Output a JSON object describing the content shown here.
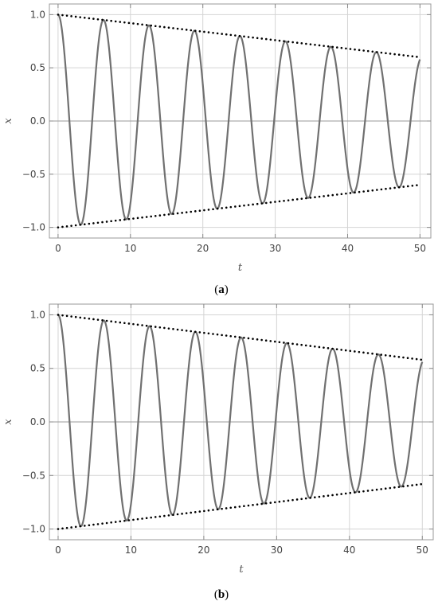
{
  "chart_data": [
    {
      "type": "line",
      "caption_letter": "a",
      "xlabel": "t",
      "ylabel": "x",
      "xlim": [
        -1.2,
        51.5
      ],
      "ylim": [
        -1.1,
        1.1
      ],
      "xticks": [
        "0",
        "10",
        "20",
        "30",
        "40",
        "50"
      ],
      "yticks": [
        "-1.0",
        "-0.5",
        "0.0",
        "0.5",
        "1.0"
      ],
      "grid": true,
      "series": [
        {
          "style": "solid",
          "color": "#707070",
          "function": "cos",
          "x": [
            0,
            50
          ],
          "amplitude": [
            1.0,
            0.6
          ],
          "omega": 1.0
        },
        {
          "style": "dotted",
          "color": "#000000",
          "x": [
            0,
            50
          ],
          "y": [
            1.0,
            0.6
          ]
        },
        {
          "style": "dotted",
          "color": "#000000",
          "x": [
            0,
            50
          ],
          "y": [
            -1.0,
            -0.6
          ]
        }
      ]
    },
    {
      "type": "line",
      "caption_letter": "b",
      "xlabel": "t",
      "ylabel": "x",
      "xlim": [
        -1.2,
        51.5
      ],
      "ylim": [
        -1.1,
        1.1
      ],
      "xticks": [
        "0",
        "10",
        "20",
        "30",
        "40",
        "50"
      ],
      "yticks": [
        "-1.0",
        "-0.5",
        "0.0",
        "0.5",
        "1.0"
      ],
      "grid": true,
      "series": [
        {
          "style": "solid",
          "color": "#707070",
          "function": "cos",
          "x": [
            0,
            50
          ],
          "amplitude": [
            1.0,
            0.58
          ],
          "omega": 1.0
        },
        {
          "style": "dotted",
          "color": "#000000",
          "x": [
            0,
            50
          ],
          "y": [
            1.0,
            0.58
          ]
        },
        {
          "style": "dotted",
          "color": "#000000",
          "x": [
            0,
            50
          ],
          "y": [
            -1.0,
            -0.58
          ]
        }
      ]
    }
  ]
}
